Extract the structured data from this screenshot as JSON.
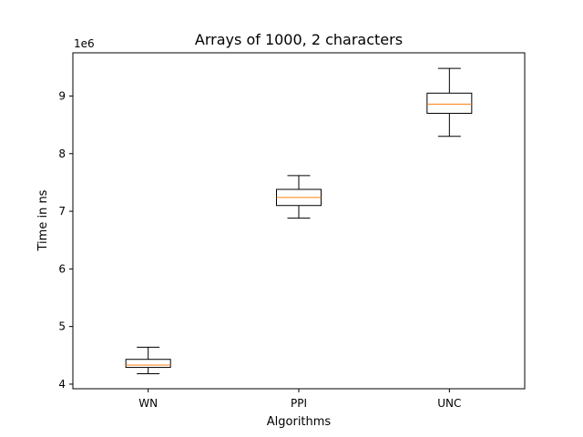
{
  "chart_data": {
    "type": "box",
    "title": "Arrays of 1000, 2 characters",
    "xlabel": "Algorithms",
    "ylabel": "Time in ns",
    "y_offset_label": "1e6",
    "y_scale_factor": 1000000,
    "ylim": [
      3.92,
      9.75
    ],
    "yticks": [
      4,
      5,
      6,
      7,
      8,
      9
    ],
    "grid": false,
    "categories": [
      "WN",
      "PPI",
      "UNC"
    ],
    "boxes": [
      {
        "label": "WN",
        "whisker_low": 4.18,
        "q1": 4.29,
        "median": 4.33,
        "q3": 4.43,
        "whisker_high": 4.64
      },
      {
        "label": "PPI",
        "whisker_low": 6.88,
        "q1": 7.1,
        "median": 7.24,
        "q3": 7.38,
        "whisker_high": 7.62
      },
      {
        "label": "UNC",
        "whisker_low": 8.3,
        "q1": 8.7,
        "median": 8.86,
        "q3": 9.05,
        "whisker_high": 9.48
      }
    ],
    "colors": {
      "box": "#000000",
      "median": "#ff7f0e",
      "axes": "#000000"
    }
  }
}
